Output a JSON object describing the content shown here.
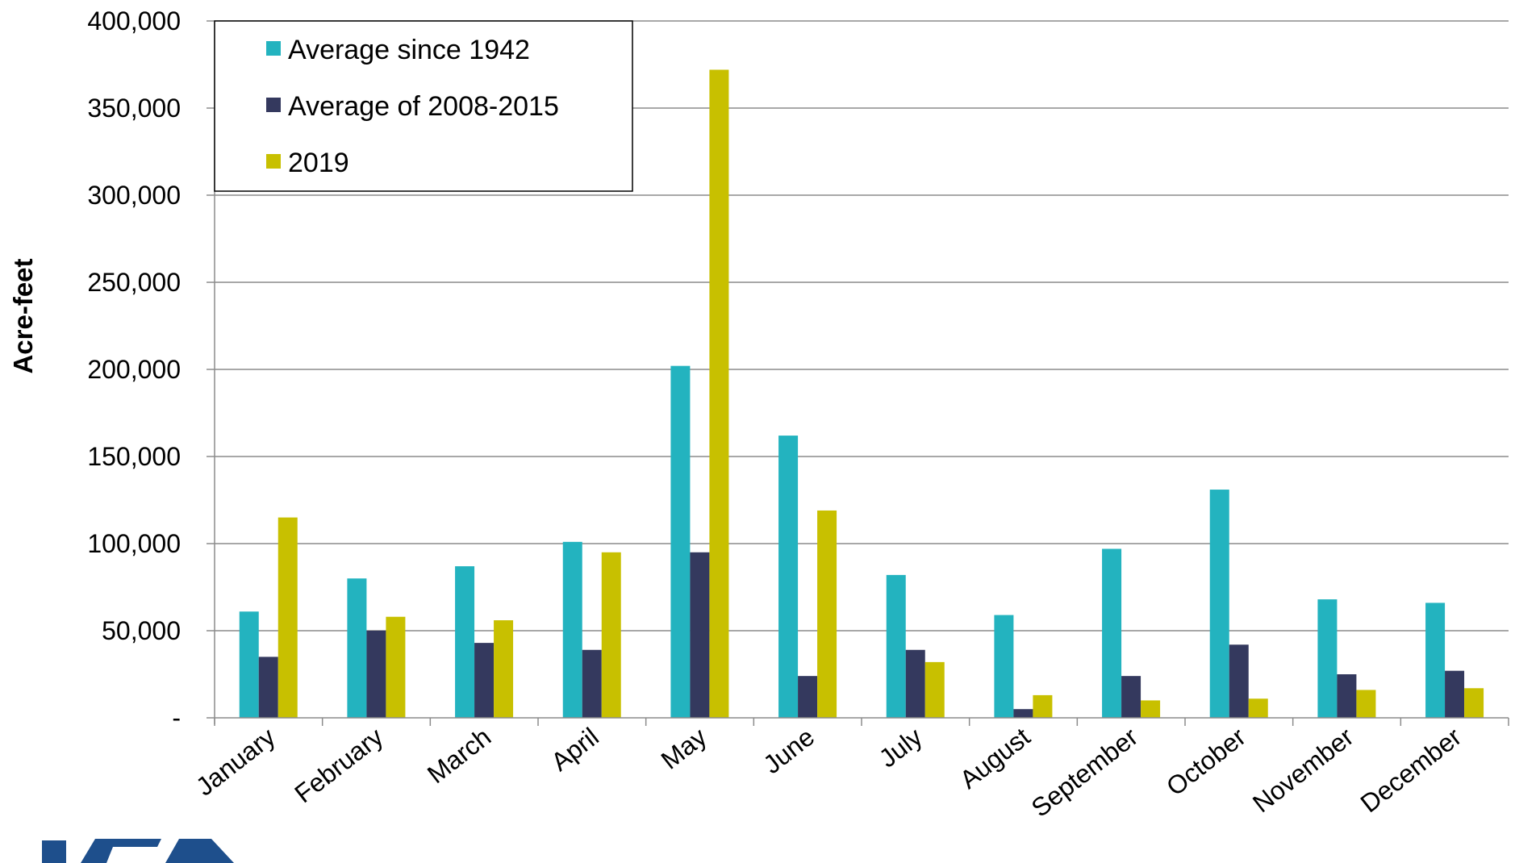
{
  "logo": {
    "alt": "USBR logo (partially visible)"
  },
  "chart_data": {
    "type": "bar",
    "title": "",
    "xlabel": "",
    "ylabel": "Acre-feet",
    "ylim": [
      0,
      400000
    ],
    "yticks": [
      0,
      50000,
      100000,
      150000,
      200000,
      250000,
      300000,
      350000,
      400000
    ],
    "ytick_labels": [
      "-",
      "50,000",
      "100,000",
      "150,000",
      "200,000",
      "250,000",
      "300,000",
      "350,000",
      "400,000"
    ],
    "grid": true,
    "legend_position": "top-left",
    "categories": [
      "January",
      "February",
      "March",
      "April",
      "May",
      "June",
      "July",
      "August",
      "September",
      "October",
      "November",
      "December"
    ],
    "series": [
      {
        "name": "Average since 1942",
        "color": "#23B3BF",
        "values": [
          61000,
          80000,
          87000,
          101000,
          202000,
          162000,
          82000,
          59000,
          97000,
          131000,
          68000,
          66000
        ]
      },
      {
        "name": "Average of 2008-2015",
        "color": "#34395E",
        "values": [
          35000,
          50000,
          43000,
          39000,
          95000,
          24000,
          39000,
          5000,
          24000,
          42000,
          25000,
          27000
        ]
      },
      {
        "name": "2019",
        "color": "#C8C000",
        "values": [
          115000,
          58000,
          56000,
          95000,
          372000,
          119000,
          32000,
          13000,
          10000,
          11000,
          16000,
          17000
        ]
      }
    ]
  }
}
